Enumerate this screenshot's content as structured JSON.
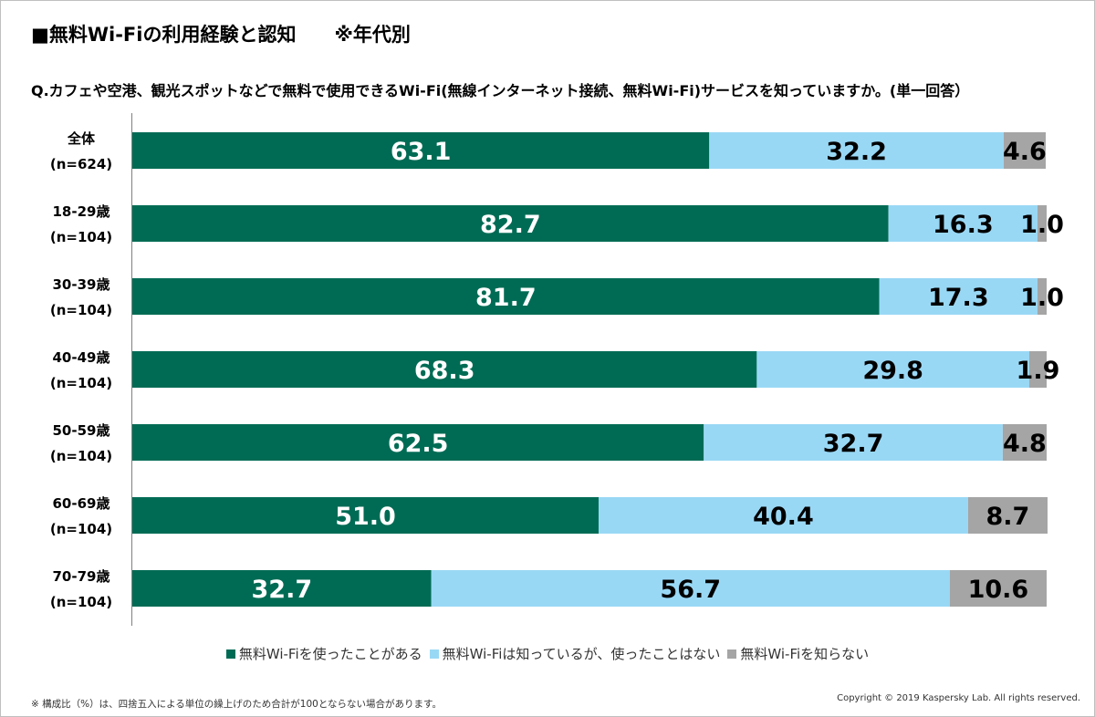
{
  "page": {
    "title": "■無料Wi-Fiの利用経験と認知　　※年代別",
    "question": "Q.カフェや空港、観光スポットなどで無料で使用できるWi-Fi(無線インターネット接続、無料Wi-Fi)サービスを知っていますか。(単一回答）",
    "footnote": "※ 構成比（%）は、四捨五入による単位の繰上げのため合計が100とならない場合があります。",
    "copyright": "Copyright © 2019 Kaspersky Lab. All rights reserved."
  },
  "chart_data": {
    "type": "bar",
    "orientation": "horizontal",
    "stacked": "100%",
    "title": "",
    "xlabel": "",
    "ylabel": "",
    "xlim": [
      0,
      100
    ],
    "grid": false,
    "legend_position": "bottom",
    "categories": [
      {
        "label": "全体",
        "n": "(n=624)"
      },
      {
        "label": "18-29歳",
        "n": "(n=104)"
      },
      {
        "label": "30-39歳",
        "n": "(n=104)"
      },
      {
        "label": "40-49歳",
        "n": "(n=104)"
      },
      {
        "label": "50-59歳",
        "n": "(n=104)"
      },
      {
        "label": "60-69歳",
        "n": "(n=104)"
      },
      {
        "label": "70-79歳",
        "n": "(n=104)"
      }
    ],
    "series": [
      {
        "name": "無料Wi-Fiを使ったことがある",
        "color": "#006b54",
        "values": [
          "63.1",
          "82.7",
          "81.7",
          "68.3",
          "62.5",
          "51.0",
          "32.7"
        ]
      },
      {
        "name": "無料Wi-Fiは知っているが、使ったことはない",
        "color": "#99d8f5",
        "values": [
          "32.2",
          "16.3",
          "17.3",
          "29.8",
          "32.7",
          "40.4",
          "56.7"
        ]
      },
      {
        "name": "無料Wi-Fiを知らない",
        "color": "#a5a5a5",
        "values": [
          "4.6",
          "1.0",
          "1.0",
          "1.9",
          "4.8",
          "8.7",
          "10.6"
        ]
      }
    ]
  }
}
